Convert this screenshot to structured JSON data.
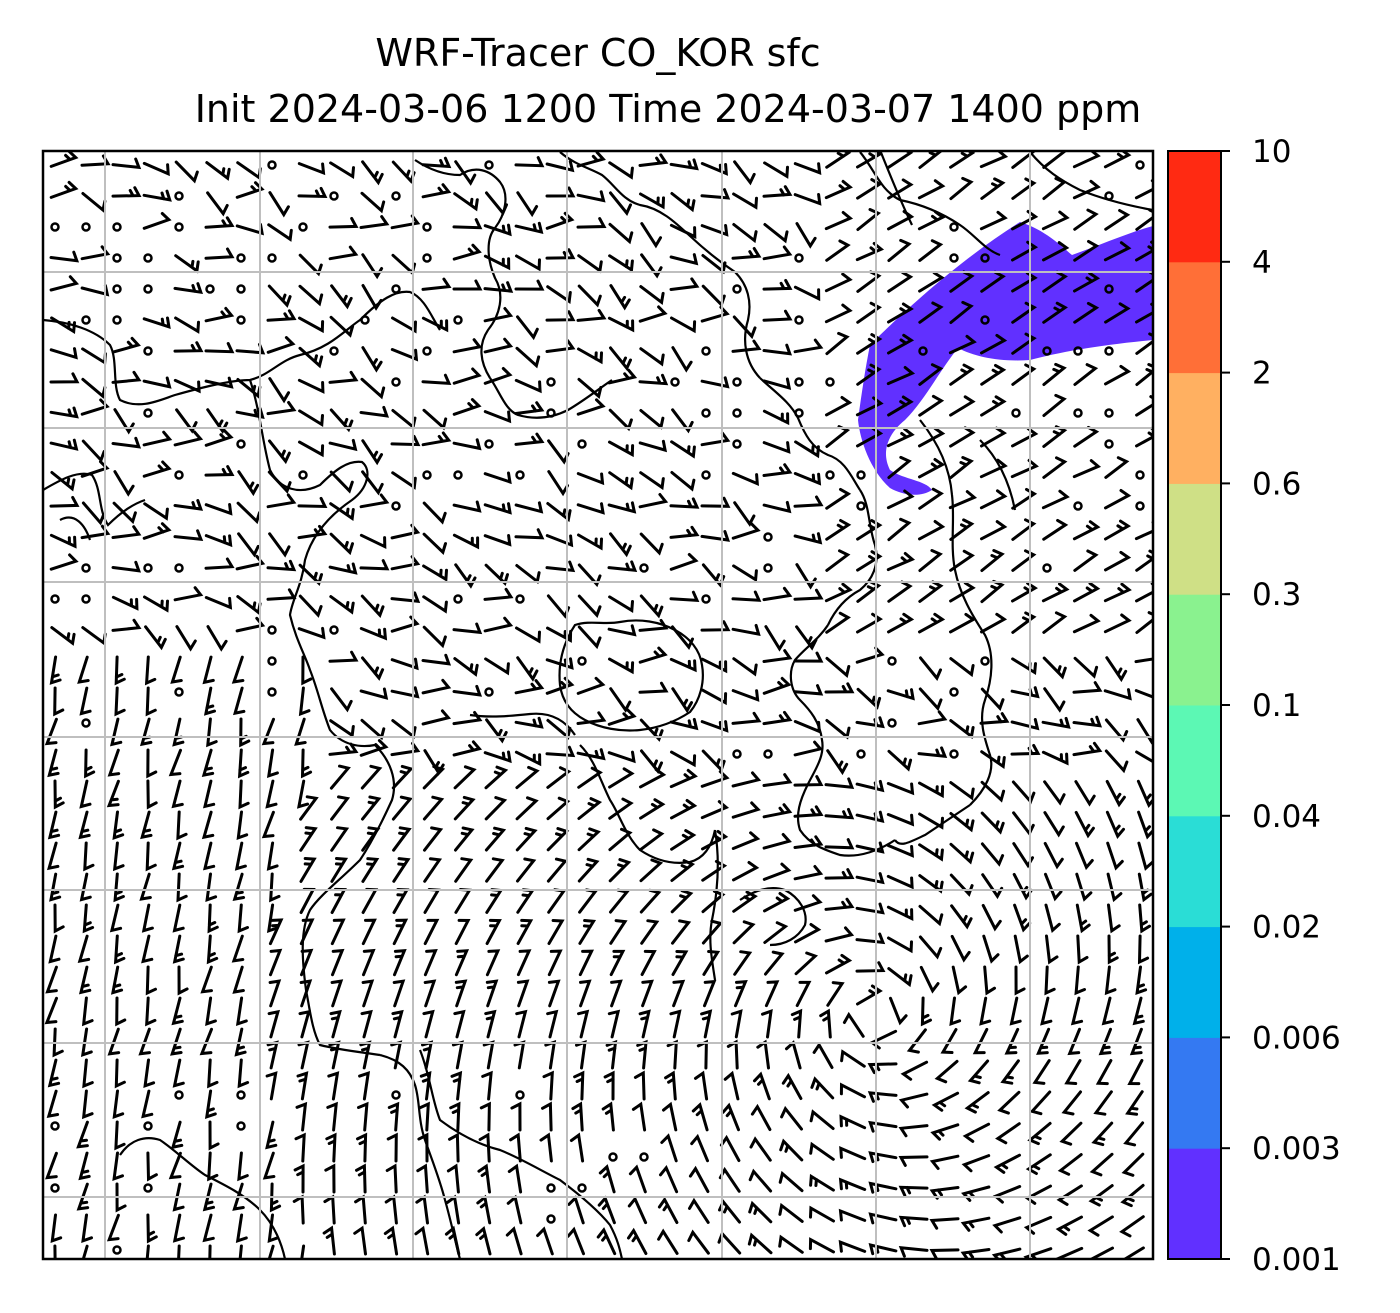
{
  "title": {
    "line1": "WRF-Tracer CO_KOR sfc",
    "line2": "Init 2024-03-06 1200 Time 2024-03-07 1400 ppm"
  },
  "map": {
    "gridlines": "on",
    "gridline_color": "#bfbfbf",
    "coastline_color": "#000000",
    "tracer_plume_level": "0.001",
    "tracer_plume_color": "#6130FF"
  },
  "colorbar": {
    "levels": [
      "0.001",
      "0.003",
      "0.006",
      "0.02",
      "0.04",
      "0.1",
      "0.3",
      "0.6",
      "2",
      "4",
      "10"
    ],
    "colors": [
      "#6130FF",
      "#3479F2",
      "#00B0EA",
      "#2ADDD6",
      "#5CF8B4",
      "#8AF28F",
      "#CFE086",
      "#FFB061",
      "#FF6F37",
      "#FF2A12"
    ]
  },
  "chart_data": {
    "type": "map",
    "title": "WRF-Tracer CO_KOR sfc",
    "subtitle": "Init 2024-03-06 1200 Time 2024-03-07 1400 ppm",
    "field": "CO_KOR tracer concentration (ppm) with surface wind barbs",
    "contour_levels": [
      0.001,
      0.003,
      0.006,
      0.02,
      0.04,
      0.1,
      0.3,
      0.6,
      2,
      4,
      10
    ],
    "shaded_levels_present": [
      0.001
    ],
    "legend": "colorbar right"
  }
}
